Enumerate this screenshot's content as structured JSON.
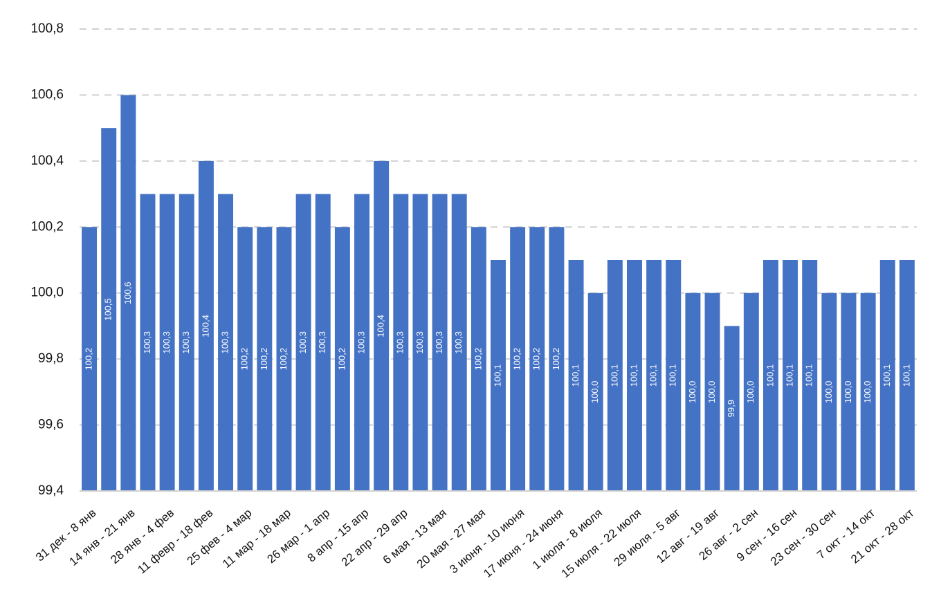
{
  "chart_data": {
    "type": "bar",
    "categories": [
      "31 дек - 8 янв",
      null,
      "14 янв - 21 янв",
      null,
      "28 янв - 4 фев",
      null,
      "11 февр - 18 фев",
      null,
      "25 фев - 4 мар",
      null,
      "11 мар - 18 мар",
      null,
      "26 мар - 1 апр",
      null,
      "8 апр - 15 апр",
      null,
      "22 апр - 29 апр",
      null,
      "6 мая - 13 мая",
      null,
      "20 мая - 27 мая",
      null,
      "3 июня - 10 июня",
      null,
      "17 июня - 24 июня",
      null,
      "1 июля - 8 июля",
      null,
      "15 июля - 22 июля",
      null,
      "29 июля - 5 авг",
      null,
      "12 авг - 19 авг",
      null,
      "26 авг - 2 сен",
      null,
      "9 сен - 16 сен",
      null,
      "23 сен - 30 сен",
      null,
      "7 окт - 14 окт",
      null,
      "21 окт - 28 окт"
    ],
    "values": [
      100.2,
      100.5,
      100.6,
      100.3,
      100.3,
      100.3,
      100.4,
      100.3,
      100.2,
      100.2,
      100.2,
      100.3,
      100.3,
      100.2,
      100.3,
      100.4,
      100.3,
      100.3,
      100.3,
      100.3,
      100.2,
      100.1,
      100.2,
      100.2,
      100.2,
      100.1,
      100.0,
      100.1,
      100.1,
      100.1,
      100.1,
      100.0,
      100.0,
      99.9,
      100.0,
      100.1,
      100.1,
      100.1,
      100.0,
      100.0,
      100.0,
      100.1,
      100.1
    ],
    "value_labels": [
      "100,2",
      "100,5",
      "100,6",
      "100,3",
      "100,3",
      "100,3",
      "100,4",
      "100,3",
      "100,2",
      "100,2",
      "100,2",
      "100,3",
      "100,3",
      "100,2",
      "100,3",
      "100,4",
      "100,3",
      "100,3",
      "100,3",
      "100,3",
      "100,2",
      "100,1",
      "100,2",
      "100,2",
      "100,2",
      "100,1",
      "100,0",
      "100,1",
      "100,1",
      "100,1",
      "100,1",
      "100,0",
      "100,0",
      "99,9",
      "100,0",
      "100,1",
      "100,1",
      "100,1",
      "100,0",
      "100,0",
      "100,0",
      "100,1",
      "100,1"
    ],
    "color": "#4472c4",
    "ylim": [
      99.4,
      100.8
    ],
    "yticks": [
      {
        "value": 99.4,
        "label": "99,4"
      },
      {
        "value": 99.6,
        "label": "99,6"
      },
      {
        "value": 99.8,
        "label": "99,8"
      },
      {
        "value": 100.0,
        "label": "100,0"
      },
      {
        "value": 100.2,
        "label": "100,2"
      },
      {
        "value": 100.4,
        "label": "100,4"
      },
      {
        "value": 100.6,
        "label": "100,6"
      },
      {
        "value": 100.8,
        "label": "100,8"
      }
    ],
    "grid": true
  }
}
